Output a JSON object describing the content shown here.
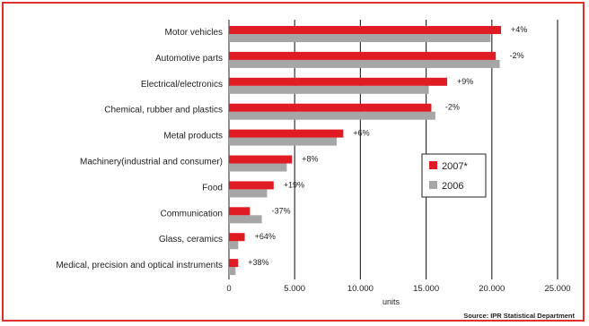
{
  "chart_data": {
    "type": "bar",
    "orientation": "horizontal",
    "categories": [
      "Motor vehicles",
      "Automotive parts",
      "Electrical/electronics",
      "Chemical, rubber and plastics",
      "Metal products",
      "Machinery(industrial and consumer)",
      "Food",
      "Communication",
      "Glass, ceramics",
      "Medical, precision and optical instruments"
    ],
    "series": [
      {
        "name": "2007*",
        "values": [
          20700,
          20300,
          16600,
          15400,
          8700,
          4800,
          3400,
          1600,
          1200,
          700
        ],
        "color": "#e01b24"
      },
      {
        "name": "2006",
        "values": [
          19900,
          20600,
          15200,
          15700,
          8200,
          4400,
          2900,
          2500,
          700,
          500
        ],
        "color": "#a6a6a6"
      }
    ],
    "annotations": [
      "+4%",
      "-2%",
      "+9%",
      "-2%",
      "+6%",
      "+8%",
      "+19%",
      "-37%",
      "+64%",
      "+38%"
    ],
    "xticks": [
      "0",
      "5.000",
      "10.000",
      "15.000",
      "20.000",
      "25.000"
    ],
    "xlim": [
      0,
      25000
    ],
    "xlabel": "units",
    "grid": true,
    "legend_position": "right",
    "source": "Source: IPR Statistical Department"
  }
}
